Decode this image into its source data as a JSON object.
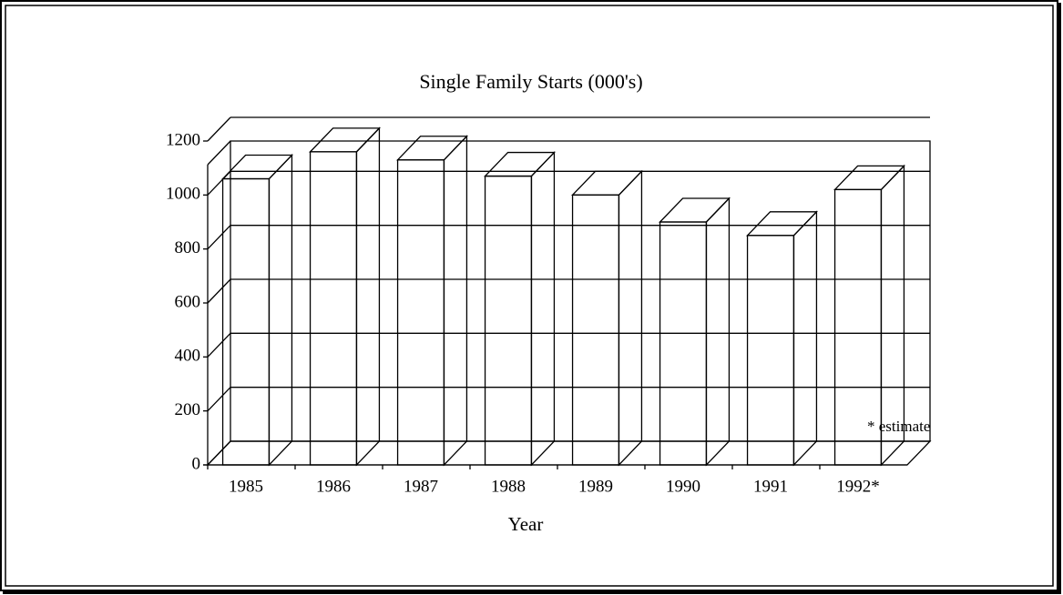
{
  "chart_data": {
    "type": "bar3d",
    "title": "Single Family Starts (000's)",
    "categories": [
      "1985",
      "1986",
      "1987",
      "1988",
      "1989",
      "1990",
      "1991",
      "1992*"
    ],
    "values": [
      1060,
      1160,
      1130,
      1070,
      1000,
      900,
      850,
      1020
    ],
    "color": "#ffffff",
    "ylim": [
      0,
      1200
    ],
    "yticks": [
      0,
      200,
      400,
      600,
      800,
      1000,
      1200
    ],
    "grid": true,
    "xlabel": "Year",
    "annotation": "* estimate"
  }
}
